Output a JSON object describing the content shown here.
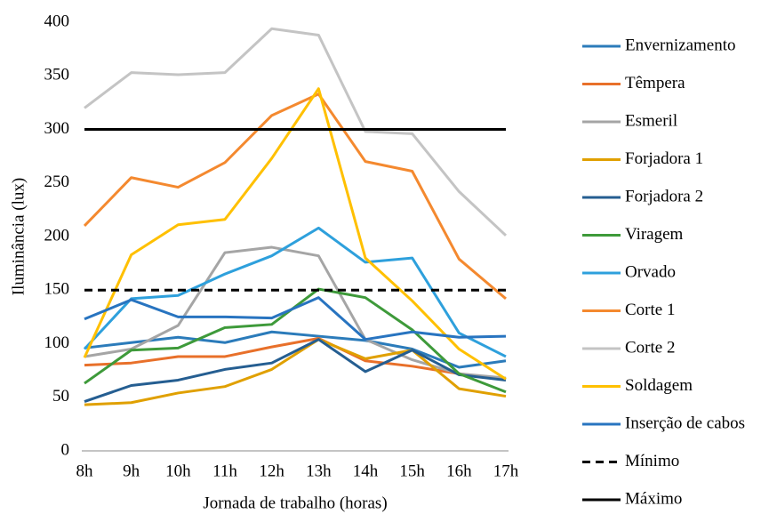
{
  "chart_data": {
    "type": "line",
    "xlabel": "Jornada de trabalho (horas)",
    "ylabel": "Iluminância (lux)",
    "categories": [
      "8h",
      "9h",
      "10h",
      "11h",
      "12h",
      "13h",
      "14h",
      "15h",
      "16h",
      "17h"
    ],
    "ylim": [
      0,
      400
    ],
    "yticks": [
      0,
      50,
      100,
      150,
      200,
      250,
      300,
      350,
      400
    ],
    "grid": false,
    "legend": "right",
    "series": [
      {
        "name": "Envernizamento",
        "color": "#2b7bba",
        "values": [
          96,
          101,
          106,
          101,
          111,
          107,
          103,
          95,
          78,
          84
        ]
      },
      {
        "name": "Têmpera",
        "color": "#e8702a",
        "values": [
          80,
          82,
          88,
          88,
          97,
          105,
          84,
          79,
          72,
          67
        ]
      },
      {
        "name": "Esmeril",
        "color": "#a5a5a5",
        "values": [
          88,
          95,
          117,
          185,
          190,
          182,
          104,
          85,
          72,
          68
        ]
      },
      {
        "name": "Forjadora 1",
        "color": "#e0a000",
        "values": [
          43,
          45,
          54,
          60,
          76,
          104,
          86,
          94,
          58,
          51
        ]
      },
      {
        "name": "Forjadora 2",
        "color": "#255e91",
        "values": [
          46,
          61,
          66,
          76,
          82,
          104,
          74,
          94,
          71,
          66
        ]
      },
      {
        "name": "Viragem",
        "color": "#3e9a3a",
        "values": [
          63,
          94,
          96,
          115,
          118,
          151,
          143,
          113,
          72,
          55
        ]
      },
      {
        "name": "Orvado",
        "color": "#2ea0dc",
        "values": [
          95,
          142,
          145,
          165,
          182,
          208,
          176,
          180,
          110,
          88
        ]
      },
      {
        "name": "Corte 1",
        "color": "#f4892f",
        "values": [
          210,
          255,
          246,
          269,
          313,
          333,
          270,
          261,
          179,
          142
        ]
      },
      {
        "name": "Corte 2",
        "color": "#c4c4c4",
        "values": [
          320,
          353,
          351,
          353,
          394,
          388,
          298,
          296,
          242,
          201
        ]
      },
      {
        "name": "Soldagem",
        "color": "#ffc000",
        "values": [
          87,
          183,
          211,
          216,
          273,
          338,
          180,
          140,
          95,
          67
        ]
      },
      {
        "name": "Inserção de cabos",
        "color": "#2874c0",
        "values": [
          123,
          141,
          125,
          125,
          124,
          143,
          104,
          111,
          106,
          107
        ]
      },
      {
        "name": "Mínimo",
        "color": "#000000",
        "dashed": true,
        "values": [
          150,
          150,
          150,
          150,
          150,
          150,
          150,
          150,
          150,
          150
        ]
      },
      {
        "name": "Máximo",
        "color": "#000000",
        "values": [
          300,
          300,
          300,
          300,
          300,
          300,
          300,
          300,
          300,
          300
        ]
      }
    ]
  }
}
